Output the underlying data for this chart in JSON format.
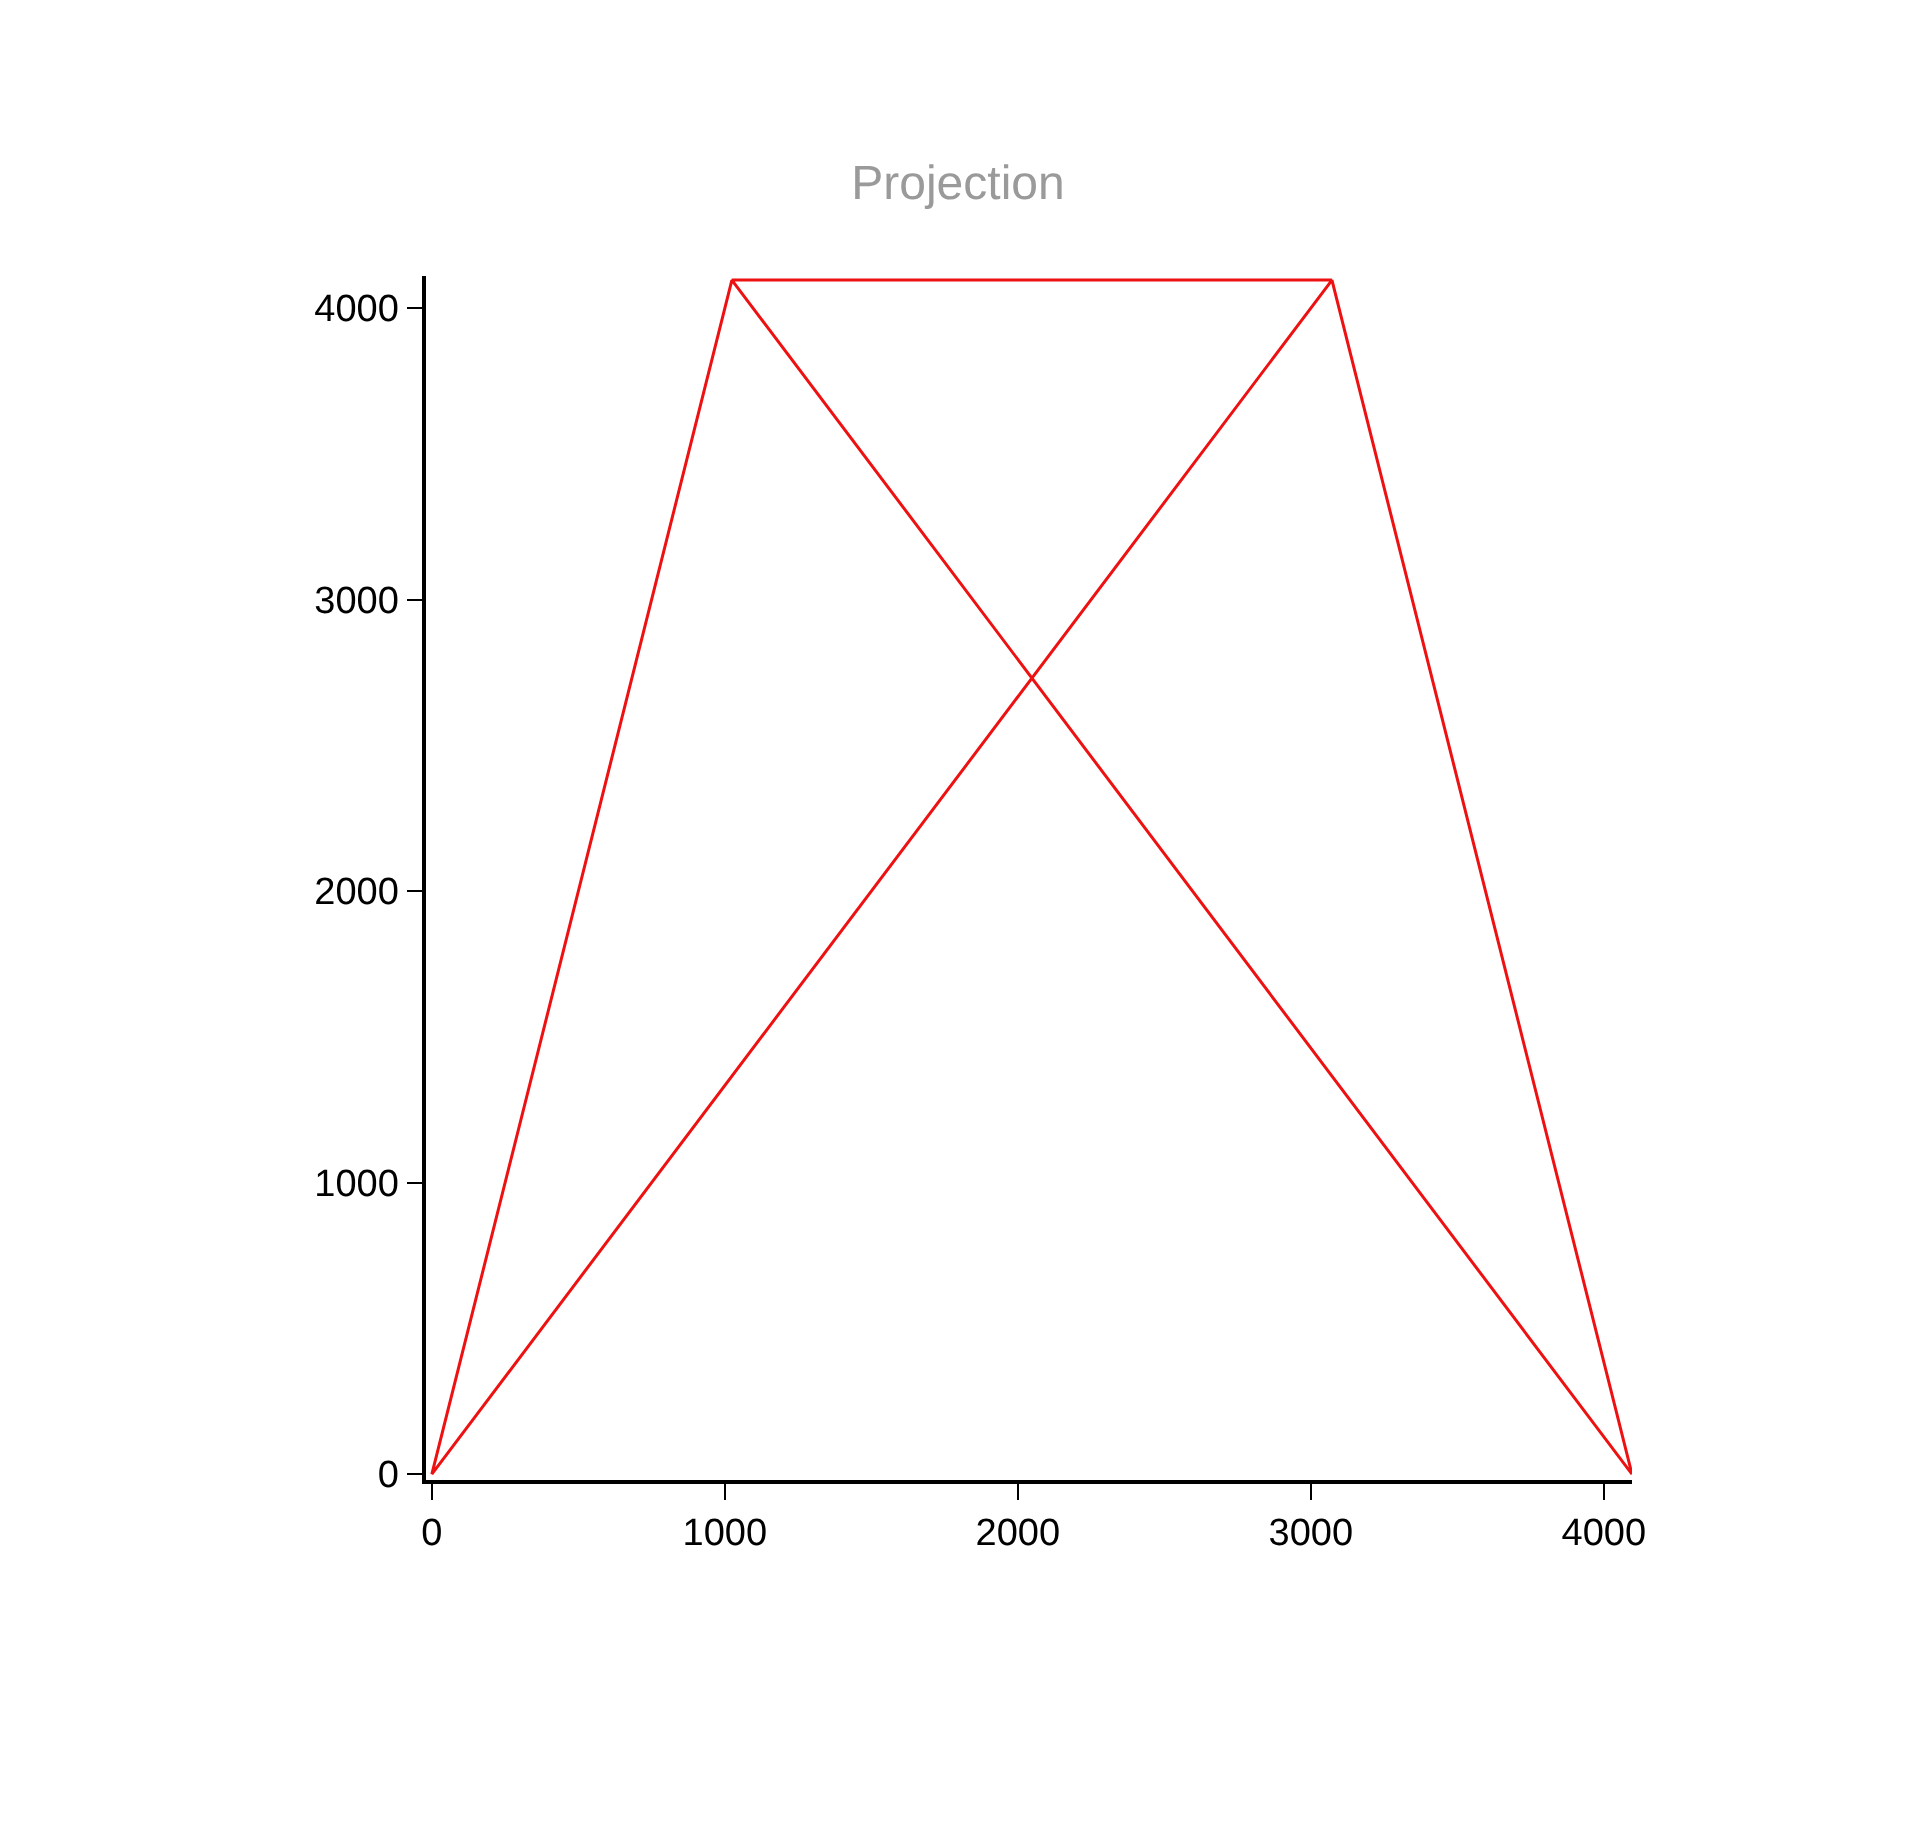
{
  "chart_data": {
    "type": "line",
    "title": "Projection",
    "x": [
      1024,
      0,
      3072,
      4096,
      1024,
      3072
    ],
    "series": [
      {
        "color": "#ee1111",
        "values": [
          4096,
          0,
          4096,
          0,
          4096,
          4096
        ]
      }
    ],
    "xlim": [
      -20,
      4096
    ],
    "ylim": [
      -20,
      4110
    ],
    "xticks": [
      0,
      1000,
      2000,
      3000,
      4000
    ],
    "yticks": [
      0,
      1000,
      2000,
      3000,
      4000
    ],
    "marker": "none",
    "line_style": "solid"
  }
}
